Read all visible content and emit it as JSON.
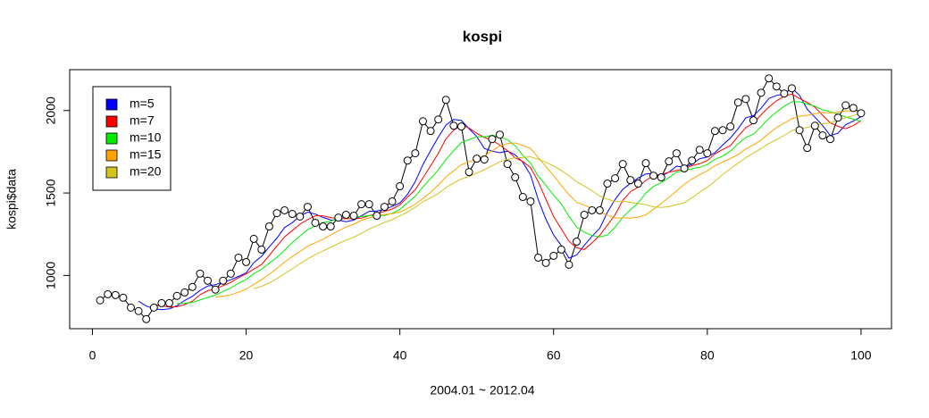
{
  "chart_data": {
    "type": "line",
    "title": "kospi",
    "xlabel": "2004.01 ~ 2012.04",
    "ylabel": "kospi$data",
    "x": [
      1,
      2,
      3,
      4,
      5,
      6,
      7,
      8,
      9,
      10,
      11,
      12,
      13,
      14,
      15,
      16,
      17,
      18,
      19,
      20,
      21,
      22,
      23,
      24,
      25,
      26,
      27,
      28,
      29,
      30,
      31,
      32,
      33,
      34,
      35,
      36,
      37,
      38,
      39,
      40,
      41,
      42,
      43,
      44,
      45,
      46,
      47,
      48,
      49,
      50,
      51,
      52,
      53,
      54,
      55,
      56,
      57,
      58,
      59,
      60,
      61,
      62,
      63,
      64,
      65,
      66,
      67,
      68,
      69,
      70,
      71,
      72,
      73,
      74,
      75,
      76,
      77,
      78,
      79,
      80,
      81,
      82,
      83,
      84,
      85,
      86,
      87,
      88,
      89,
      90,
      91,
      92,
      93,
      94,
      95,
      96,
      97,
      98,
      99,
      100
    ],
    "values": [
      849,
      886,
      881,
      865,
      805,
      784,
      735,
      805,
      832,
      832,
      876,
      897,
      930,
      1011,
      968,
      914,
      968,
      1011,
      1108,
      1081,
      1222,
      1157,
      1297,
      1378,
      1395,
      1373,
      1357,
      1416,
      1319,
      1297,
      1297,
      1351,
      1368,
      1362,
      1432,
      1432,
      1362,
      1416,
      1449,
      1541,
      1697,
      1741,
      1935,
      1876,
      1946,
      2065,
      1908,
      1903,
      1627,
      1708,
      1703,
      1827,
      1854,
      1676,
      1595,
      1476,
      1449,
      1108,
      1076,
      1119,
      1157,
      1065,
      1205,
      1368,
      1395,
      1395,
      1557,
      1589,
      1676,
      1578,
      1557,
      1681,
      1605,
      1595,
      1692,
      1741,
      1649,
      1697,
      1762,
      1741,
      1876,
      1881,
      1903,
      2049,
      2070,
      1941,
      2108,
      2195,
      2146,
      2103,
      2135,
      1881,
      1773,
      1908,
      1849,
      1827,
      1957,
      2032,
      2016,
      1984
    ],
    "point_color": "#000000",
    "series": [
      {
        "name": "m=5",
        "color": "#0000ff",
        "values": [
          null,
          null,
          null,
          null,
          null,
          844,
          814,
          799,
          792,
          798,
          816,
          848,
          873,
          909,
          936,
          944,
          958,
          974,
          994,
          1016,
          1078,
          1116,
          1173,
          1227,
          1290,
          1320,
          1360,
          1384,
          1372,
          1352,
          1337,
          1336,
          1326,
          1335,
          1362,
          1389,
          1391,
          1401,
          1418,
          1440,
          1493,
          1569,
          1673,
          1758,
          1839,
          1913,
          1946,
          1940,
          1890,
          1842,
          1770,
          1754,
          1744,
          1754,
          1731,
          1686,
          1610,
          1461,
          1341,
          1246,
          1182,
          1105,
          1124,
          1183,
          1238,
          1286,
          1384,
          1461,
          1522,
          1559,
          1591,
          1616,
          1619,
          1603,
          1626,
          1663,
          1656,
          1675,
          1708,
          1718,
          1745,
          1791,
          1833,
          1890,
          1956,
          1969,
          2014,
          2073,
          2092,
          2099,
          2137,
          2092,
          2008,
          1960,
          1909,
          1848,
          1863,
          1915,
          1936,
          1963
        ]
      },
      {
        "name": "m=7",
        "color": "#ff0000",
        "values": [
          null,
          null,
          null,
          null,
          null,
          null,
          null,
          823,
          815,
          808,
          810,
          823,
          844,
          883,
          907,
          918,
          938,
          957,
          987,
          1009,
          1039,
          1066,
          1121,
          1179,
          1234,
          1272,
          1311,
          1339,
          1362,
          1362,
          1351,
          1344,
          1344,
          1344,
          1347,
          1363,
          1372,
          1389,
          1403,
          1428,
          1476,
          1520,
          1592,
          1665,
          1741,
          1829,
          1881,
          1911,
          1894,
          1862,
          1837,
          1820,
          1790,
          1757,
          1713,
          1691,
          1654,
          1569,
          1462,
          1357,
          1283,
          1207,
          1168,
          1157,
          1198,
          1243,
          1306,
          1368,
          1455,
          1508,
          1535,
          1576,
          1606,
          1612,
          1626,
          1636,
          1646,
          1666,
          1677,
          1697,
          1737,
          1764,
          1787,
          1844,
          1897,
          1923,
          1975,
          2021,
          2059,
          2087,
          2100,
          2073,
          2049,
          2020,
          1971,
          1925,
          1904,
          1890,
          1909,
          1939
        ]
      },
      {
        "name": "m=10",
        "color": "#00ee00",
        "values": [
          null,
          null,
          null,
          null,
          null,
          null,
          null,
          null,
          null,
          null,
          830,
          831,
          836,
          851,
          867,
          880,
          903,
          924,
          952,
          976,
          1011,
          1037,
          1074,
          1110,
          1153,
          1199,
          1238,
          1278,
          1300,
          1321,
          1329,
          1348,
          1355,
          1354,
          1357,
          1363,
          1364,
          1364,
          1377,
          1401,
          1441,
          1480,
          1537,
          1588,
          1640,
          1703,
          1757,
          1806,
          1824,
          1841,
          1841,
          1850,
          1842,
          1822,
          1787,
          1728,
          1682,
          1602,
          1547,
          1488,
          1434,
          1358,
          1293,
          1262,
          1242,
          1234,
          1245,
          1293,
          1353,
          1399,
          1439,
          1500,
          1540,
          1563,
          1593,
          1627,
          1636,
          1647,
          1656,
          1672,
          1704,
          1724,
          1754,
          1799,
          1837,
          1857,
          1903,
          1953,
          1991,
          2027,
          2053,
          2053,
          2040,
          2026,
          2004,
          1993,
          1977,
          1961,
          1948,
          1936
        ]
      },
      {
        "name": "m=15",
        "color": "#ffa500",
        "values": [
          null,
          null,
          null,
          null,
          null,
          null,
          null,
          null,
          null,
          null,
          null,
          null,
          null,
          null,
          null,
          868,
          874,
          882,
          898,
          917,
          946,
          974,
          1007,
          1043,
          1081,
          1114,
          1145,
          1177,
          1198,
          1220,
          1245,
          1271,
          1294,
          1311,
          1335,
          1349,
          1362,
          1370,
          1375,
          1385,
          1406,
          1432,
          1467,
          1504,
          1547,
          1598,
          1635,
          1671,
          1689,
          1707,
          1725,
          1756,
          1785,
          1800,
          1804,
          1789,
          1770,
          1715,
          1661,
          1606,
          1546,
          1490,
          1443,
          1426,
          1405,
          1384,
          1366,
          1349,
          1349,
          1348,
          1353,
          1368,
          1402,
          1436,
          1474,
          1513,
          1552,
          1585,
          1611,
          1634,
          1666,
          1688,
          1709,
          1734,
          1767,
          1792,
          1821,
          1860,
          1897,
          1924,
          1950,
          1966,
          1971,
          1981,
          1988,
          1985,
          1990,
          1998,
          1996,
          1990
        ]
      },
      {
        "name": "m=20",
        "color": "#d2c31e",
        "values": [
          null,
          null,
          null,
          null,
          null,
          null,
          null,
          null,
          null,
          null,
          null,
          null,
          null,
          null,
          null,
          null,
          null,
          null,
          null,
          null,
          921,
          934,
          955,
          981,
          1010,
          1040,
          1071,
          1101,
          1126,
          1149,
          1170,
          1193,
          1214,
          1232,
          1255,
          1281,
          1301,
          1321,
          1338,
          1361,
          1385,
          1414,
          1446,
          1471,
          1498,
          1533,
          1561,
          1585,
          1600,
          1621,
          1641,
          1665,
          1689,
          1705,
          1713,
          1715,
          1720,
          1704,
          1686,
          1664,
          1637,
          1604,
          1567,
          1542,
          1514,
          1481,
          1463,
          1447,
          1450,
          1443,
          1436,
          1429,
          1416,
          1412,
          1417,
          1430,
          1440,
          1470,
          1504,
          1535,
          1571,
          1612,
          1647,
          1681,
          1715,
          1742,
          1770,
          1800,
          1823,
          1850,
          1879,
          1889,
          1897,
          1913,
          1920,
          1925,
          1940,
          1957,
          1970,
          1982
        ]
      }
    ],
    "xlim": [
      -2.96,
      103.96
    ],
    "xticks": [
      0,
      20,
      40,
      60,
      80,
      100
    ],
    "ylim": [
      677,
      2248
    ],
    "yticks": [
      1000,
      1500,
      2000
    ],
    "grid": false,
    "legend": "topleft"
  }
}
